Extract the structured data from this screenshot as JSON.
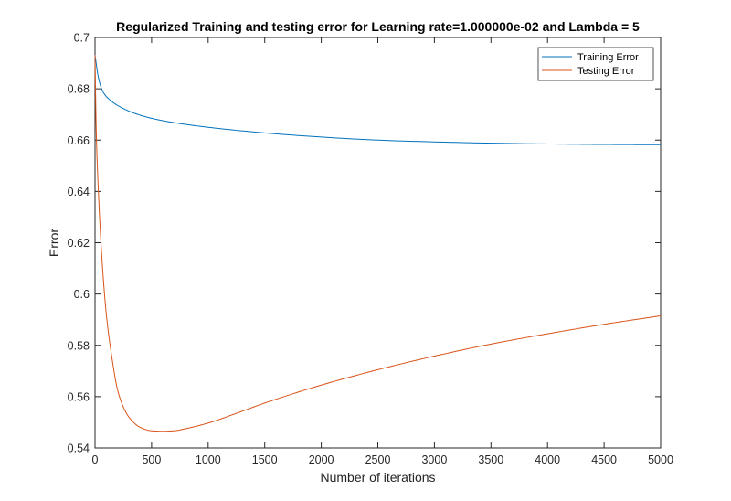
{
  "chart_data": {
    "type": "line",
    "title": "Regularized Training and testing error for Learning rate=1.000000e-02 and Lambda = 5",
    "xlabel": "Number of iterations",
    "ylabel": "Error",
    "xlim": [
      0,
      5000
    ],
    "ylim": [
      0.54,
      0.7
    ],
    "xticks": [
      0,
      500,
      1000,
      1500,
      2000,
      2500,
      3000,
      3500,
      4000,
      4500,
      5000
    ],
    "xtick_labels": [
      "0",
      "500",
      "1000",
      "1500",
      "2000",
      "2500",
      "3000",
      "3500",
      "4000",
      "4500",
      "5000"
    ],
    "yticks": [
      0.54,
      0.56,
      0.58,
      0.6,
      0.62,
      0.64,
      0.66,
      0.68,
      0.7
    ],
    "ytick_labels": [
      "0.54",
      "0.56",
      "0.58",
      "0.6",
      "0.62",
      "0.64",
      "0.66",
      "0.68",
      "0.7"
    ],
    "grid": false,
    "legend_position": "top-right",
    "series": [
      {
        "name": "Training Error",
        "color": "#0072BD",
        "x": [
          0,
          10,
          25,
          50,
          75,
          100,
          150,
          200,
          300,
          400,
          500,
          700,
          1000,
          1500,
          2000,
          2500,
          3000,
          3500,
          4000,
          4500,
          5000
        ],
        "y": [
          0.6931,
          0.69,
          0.6855,
          0.681,
          0.6785,
          0.677,
          0.675,
          0.6735,
          0.6713,
          0.6697,
          0.6685,
          0.6668,
          0.665,
          0.6628,
          0.6612,
          0.66,
          0.6593,
          0.6588,
          0.6585,
          0.6583,
          0.6582
        ]
      },
      {
        "name": "Testing Error",
        "color": "#D95319",
        "x": [
          0,
          10,
          25,
          50,
          75,
          100,
          150,
          200,
          250,
          300,
          400,
          500,
          600,
          700,
          800,
          1000,
          1250,
          1500,
          2000,
          2500,
          3000,
          3500,
          4000,
          4500,
          5000
        ],
        "y": [
          0.6931,
          0.665,
          0.645,
          0.622,
          0.605,
          0.592,
          0.575,
          0.5625,
          0.556,
          0.552,
          0.548,
          0.5467,
          0.5465,
          0.5467,
          0.5475,
          0.5497,
          0.5535,
          0.5575,
          0.5645,
          0.5705,
          0.5758,
          0.5805,
          0.5845,
          0.5882,
          0.5915
        ]
      }
    ]
  }
}
